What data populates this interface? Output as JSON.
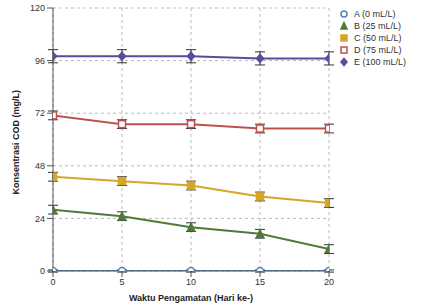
{
  "chart_data": {
    "type": "line",
    "x_label": "Waktu Pengamatan (Hari ke-)",
    "y_label": "Konsentrasi COD (mg/L)",
    "x": [
      0,
      5,
      10,
      15,
      20
    ],
    "xlim": [
      0,
      20
    ],
    "xticks": [
      0,
      5,
      10,
      15,
      20
    ],
    "ylim": [
      0,
      120
    ],
    "yticks": [
      0,
      24,
      48,
      72,
      96,
      120
    ],
    "grid": true,
    "legend": "upper right",
    "series": [
      {
        "name": "A (0 mL/L)",
        "color": "#4f81bd",
        "marker": "open_circle",
        "values": [
          0,
          0,
          0,
          0,
          0
        ],
        "errors": [
          0.5,
          0.5,
          0.5,
          0.5,
          0.5
        ]
      },
      {
        "name": "B (25 mL/L)",
        "color": "#4f7a3a",
        "marker": "triangle",
        "values": [
          28,
          25,
          20,
          17,
          10
        ],
        "errors": [
          2,
          2,
          2,
          2,
          2
        ]
      },
      {
        "name": "C (50 mL/L)",
        "color": "#d4a62a",
        "marker": "square",
        "values": [
          43,
          41,
          39,
          34,
          31
        ],
        "errors": [
          2,
          2,
          2,
          2,
          2
        ]
      },
      {
        "name": "D (75 mL/L)",
        "color": "#c0504d",
        "marker": "open_square",
        "values": [
          71,
          67,
          67,
          65,
          65
        ],
        "errors": [
          2,
          2,
          2,
          2,
          2
        ]
      },
      {
        "name": "E (100 mL/L)",
        "color": "#5b4a9e",
        "marker": "diamond",
        "values": [
          98,
          98,
          98,
          97,
          97
        ],
        "errors": [
          3,
          3,
          3,
          3,
          3
        ]
      }
    ]
  }
}
